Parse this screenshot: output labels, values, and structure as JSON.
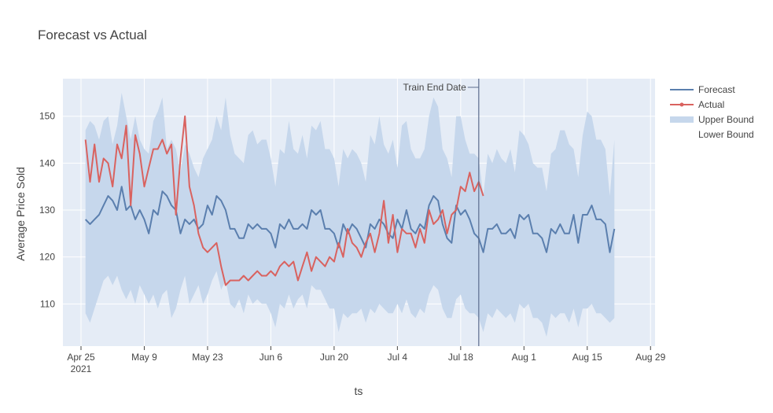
{
  "chart_data": {
    "type": "line",
    "title": "Forecast vs Actual",
    "xlabel": "ts",
    "ylabel": "Average Price Sold",
    "xlim": [
      "2021-04-21",
      "2021-08-30"
    ],
    "ylim": [
      101,
      158
    ],
    "x_tick_labels": [
      {
        "date": "2021-04-25",
        "line1": "Apr 25",
        "line2": "2021"
      },
      {
        "date": "2021-05-09",
        "line1": "May 9",
        "line2": ""
      },
      {
        "date": "2021-05-23",
        "line1": "May 23",
        "line2": ""
      },
      {
        "date": "2021-06-06",
        "line1": "Jun 6",
        "line2": ""
      },
      {
        "date": "2021-06-20",
        "line1": "Jun 20",
        "line2": ""
      },
      {
        "date": "2021-07-04",
        "line1": "Jul 4",
        "line2": ""
      },
      {
        "date": "2021-07-18",
        "line1": "Jul 18",
        "line2": ""
      },
      {
        "date": "2021-08-01",
        "line1": "Aug 1",
        "line2": ""
      },
      {
        "date": "2021-08-15",
        "line1": "Aug 15",
        "line2": ""
      },
      {
        "date": "2021-08-29",
        "line1": "Aug 29",
        "line2": ""
      }
    ],
    "y_ticks": [
      110,
      120,
      130,
      140,
      150
    ],
    "grid": true,
    "legend_position": "top-right",
    "vline": {
      "date": "2021-07-22",
      "label": "Train End Date"
    },
    "series": [
      {
        "name": "Forecast",
        "color": "#5b7fae",
        "kind": "line",
        "values": [
          128,
          127,
          128,
          129,
          131,
          133,
          132,
          130,
          135,
          130,
          131,
          128,
          130,
          128,
          125,
          130,
          129,
          134,
          133,
          131,
          130,
          125,
          128,
          127,
          128,
          126,
          127,
          131,
          129,
          133,
          132,
          130,
          126,
          126,
          124,
          124,
          127,
          126,
          127,
          126,
          126,
          125,
          122,
          127,
          126,
          128,
          126,
          126,
          127,
          126,
          130,
          129,
          130,
          126,
          126,
          125,
          122,
          127,
          125,
          127,
          126,
          124,
          122,
          127,
          126,
          128,
          127,
          125,
          124,
          128,
          126,
          130,
          126,
          125,
          127,
          126,
          131,
          133,
          132,
          127,
          124,
          123,
          131,
          129,
          130,
          128,
          125,
          124,
          121,
          126,
          126,
          127,
          125,
          125,
          126,
          124,
          129,
          128,
          129,
          125,
          125,
          124,
          121,
          126,
          125,
          127,
          125,
          125,
          129,
          123,
          129,
          129,
          131,
          128,
          128,
          127,
          121,
          126
        ]
      },
      {
        "name": "Actual",
        "color": "#d9625f",
        "kind": "line",
        "values": [
          145,
          136,
          144,
          136,
          141,
          140,
          135,
          144,
          141,
          148,
          131,
          146,
          142,
          135,
          139,
          143,
          143,
          145,
          142,
          144,
          129,
          141,
          150,
          135,
          131,
          125,
          122,
          121,
          122,
          123,
          118,
          114,
          115,
          115,
          115,
          116,
          115,
          116,
          117,
          116,
          116,
          117,
          116,
          118,
          119,
          118,
          119,
          115,
          118,
          121,
          117,
          120,
          119,
          118,
          120,
          119,
          123,
          120,
          126,
          123,
          122,
          120,
          123,
          125,
          121,
          125,
          132,
          123,
          129,
          121,
          126,
          125,
          125,
          122,
          126,
          123,
          130,
          127,
          128,
          130,
          125,
          129,
          130,
          135,
          134,
          138,
          134,
          136,
          133
        ]
      },
      {
        "name": "Upper Bound",
        "color": "#c6d7ec",
        "kind": "band",
        "values": [
          147,
          149,
          148,
          145,
          149,
          150,
          144,
          148,
          155,
          150,
          145,
          150,
          145,
          143,
          142,
          149,
          151,
          154,
          143,
          145,
          143,
          138,
          144,
          142,
          139,
          137,
          141,
          143,
          145,
          150,
          147,
          154,
          146,
          142,
          141,
          140,
          146,
          147,
          144,
          145,
          145,
          141,
          135,
          143,
          142,
          149,
          143,
          142,
          146,
          141,
          148,
          147,
          149,
          143,
          143,
          141,
          135,
          143,
          141,
          143,
          142,
          140,
          136,
          146,
          144,
          150,
          144,
          142,
          145,
          139,
          148,
          149,
          143,
          141,
          141,
          143,
          150,
          154,
          152,
          143,
          141,
          137,
          150,
          150,
          145,
          142,
          142,
          141,
          133,
          142,
          140,
          143,
          141,
          140,
          143,
          138,
          147,
          146,
          144,
          140,
          139,
          139,
          134,
          142,
          143,
          147,
          147,
          144,
          143,
          137,
          146,
          151,
          150,
          145,
          145,
          143,
          133,
          145
        ]
      },
      {
        "name": "Lower Bound",
        "color": "#c6d7ec",
        "kind": "band",
        "values": [
          108,
          106,
          109,
          112,
          115,
          116,
          114,
          116,
          113,
          111,
          113,
          110,
          114,
          112,
          110,
          112,
          109,
          112,
          113,
          107,
          109,
          113,
          116,
          110,
          112,
          114,
          110,
          112,
          115,
          117,
          113,
          115,
          110,
          109,
          111,
          108,
          112,
          110,
          111,
          110,
          110,
          108,
          105,
          110,
          109,
          112,
          109,
          111,
          112,
          109,
          114,
          113,
          113,
          111,
          109,
          109,
          104,
          108,
          107,
          108,
          108,
          109,
          106,
          109,
          108,
          110,
          109,
          108,
          108,
          110,
          108,
          111,
          108,
          107,
          109,
          108,
          112,
          114,
          113,
          109,
          107,
          107,
          111,
          112,
          109,
          108,
          108,
          107,
          104,
          108,
          107,
          109,
          108,
          107,
          108,
          106,
          110,
          109,
          110,
          107,
          107,
          106,
          103,
          108,
          107,
          108,
          108,
          106,
          109,
          105,
          109,
          109,
          110,
          108,
          108,
          107,
          106,
          107
        ]
      }
    ]
  }
}
